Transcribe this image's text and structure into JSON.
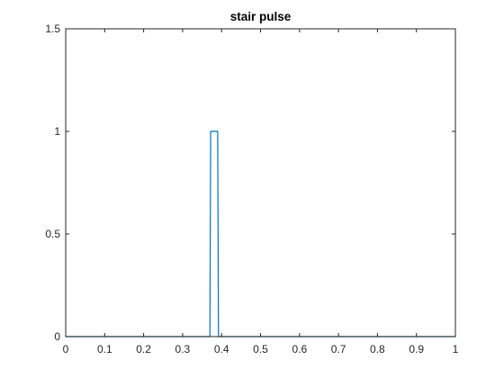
{
  "chart_data": {
    "type": "line",
    "title": "stair pulse",
    "xlabel": "",
    "ylabel": "",
    "xlim": [
      0,
      1
    ],
    "ylim": [
      0,
      1.5
    ],
    "x_ticks": [
      0,
      0.1,
      0.2,
      0.3,
      0.4,
      0.5,
      0.6,
      0.7,
      0.8,
      0.9,
      1
    ],
    "x_tick_labels": [
      "0",
      "0.1",
      "0.2",
      "0.3",
      "0.4",
      "0.5",
      "0.6",
      "0.7",
      "0.8",
      "0.9",
      "1"
    ],
    "y_ticks": [
      0,
      0.5,
      1,
      1.5
    ],
    "y_tick_labels": [
      "0",
      "0.5",
      "1",
      "1.5"
    ],
    "grid": false,
    "legend": "none",
    "series": [
      {
        "color": "#0072bd",
        "x": [
          0,
          0.37,
          0.372,
          0.39,
          0.392,
          1
        ],
        "y": [
          0,
          0,
          1,
          1,
          0,
          0
        ]
      }
    ]
  }
}
